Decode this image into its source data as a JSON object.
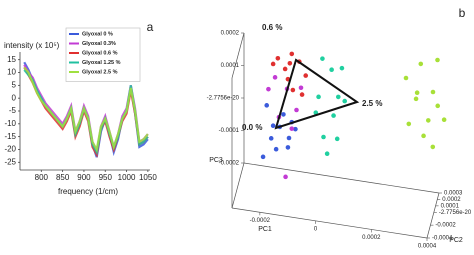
{
  "chart_data": [
    {
      "type": "line",
      "label": "a",
      "ylabel": "intensity (x 10⁵)",
      "xlabel": "frequency (1/cm)",
      "x": [
        760,
        770,
        780,
        790,
        800,
        810,
        820,
        830,
        840,
        850,
        860,
        870,
        880,
        890,
        900,
        910,
        920,
        930,
        940,
        950,
        960,
        970,
        980,
        990,
        1000,
        1010,
        1020,
        1030,
        1040,
        1050
      ],
      "xlim": [
        750,
        1055
      ],
      "xticks": [
        800,
        850,
        900,
        950,
        1000,
        1050
      ],
      "ylim": [
        -28,
        18
      ],
      "yticks": [
        15,
        10,
        5,
        0,
        -5,
        -10,
        -15,
        -20,
        -25
      ],
      "legend": "top-right",
      "series": [
        {
          "name": "Glyoxal 0 %",
          "color": "#3b5bdb",
          "values": [
            14,
            11,
            7,
            3,
            0,
            -3,
            -5,
            -7,
            -9,
            -11,
            -8,
            -4,
            -14,
            -10,
            -4,
            -8,
            -18,
            -23,
            -13,
            -8,
            -14,
            -21,
            -16,
            -8,
            -5,
            4,
            -6,
            -19,
            -18,
            -16
          ]
        },
        {
          "name": "Glyoxal 0.3%",
          "color": "#c23bd4",
          "values": [
            13,
            10,
            8,
            4,
            1,
            -2,
            -4,
            -6,
            -8,
            -10,
            -7,
            -3,
            -13,
            -9,
            -3,
            -7,
            -17,
            -21,
            -11,
            -7,
            -13,
            -19,
            -14,
            -7,
            -4,
            5,
            -4,
            -17,
            -16,
            -14
          ]
        },
        {
          "name": "Glyoxal 0.6 %",
          "color": "#e03030",
          "values": [
            12,
            9,
            6,
            2,
            -1,
            -4,
            -6,
            -8,
            -10,
            -12,
            -9,
            -5,
            -15,
            -11,
            -5,
            -9,
            -19,
            -22,
            -12,
            -9,
            -15,
            -20,
            -15,
            -9,
            -6,
            3,
            -6,
            -18,
            -17,
            -15
          ]
        },
        {
          "name": "Glyoxal 1.25 %",
          "color": "#20c0a0",
          "values": [
            11,
            9,
            7,
            3,
            0,
            -3,
            -5,
            -7,
            -9,
            -11,
            -8,
            -4,
            -14,
            -10,
            -4,
            -8,
            -18,
            -21,
            -12,
            -8,
            -14,
            -19,
            -15,
            -8,
            -5,
            5,
            -5,
            -18,
            -17,
            -15
          ]
        },
        {
          "name": "Glyoxal 2.5 %",
          "color": "#a0e040",
          "values": [
            12,
            10,
            6,
            2,
            -1,
            -3,
            -5,
            -7,
            -9,
            -11,
            -8,
            -4,
            -13,
            -9,
            -4,
            -8,
            -17,
            -20,
            -11,
            -8,
            -13,
            -19,
            -14,
            -8,
            -5,
            4,
            -5,
            -17,
            -16,
            -14
          ]
        }
      ]
    },
    {
      "type": "scatter3d",
      "label": "b",
      "xlabel": "PC1",
      "zlabel": "PC2",
      "ylabel": "PC3",
      "annotations": [
        "0.6 %",
        "2.5 %",
        "0.0 %"
      ],
      "xlim": [
        -0.0003,
        0.0004
      ],
      "xticks": [
        -0.0002,
        0,
        0.0002,
        0.0004
      ],
      "zlim": [
        -0.0004,
        0.0003
      ],
      "zticks": [
        -0.0004,
        -0.0002,
        -2.7756e-20,
        0.0001,
        0.0002,
        0.0003
      ],
      "ylim": [
        -0.0002,
        0.0002
      ],
      "yticks": [
        -0.0002,
        -0.0001,
        -2.7756e-20,
        0.0001,
        0.0002
      ],
      "series": [
        {
          "color": "#3b5bdb",
          "x": [
            -0.0002,
            -0.00018,
            -0.00015,
            -0.00012,
            -0.00019,
            -0.00016,
            -0.0001,
            -0.00014,
            -0.00021,
            -0.00013,
            -0.00011
          ],
          "y": [
            5e-05,
            -2e-05,
            0,
            -4e-05,
            -7e-05,
            -6e-05,
            -2e-05,
            3e-05,
            -0.0001,
            -9e-05,
            1e-05
          ],
          "z": [
            0,
            5e-05,
            -5e-05,
            0,
            0.0001,
            -0.0001,
            5e-05,
            0,
            -5e-05,
            0.0001,
            0
          ]
        },
        {
          "color": "#c23bd4",
          "x": [
            -0.00017,
            -0.00013,
            -9e-05,
            -0.0002,
            -0.00011,
            -0.00015,
            -8e-05,
            -0.00012
          ],
          "y": [
            0.00014,
            0.0001,
            6e-05,
            8e-05,
            -1e-05,
            4e-05,
            0.00011,
            -0.00012
          ],
          "z": [
            0,
            5e-05,
            -5e-05,
            0.0001,
            0,
            -0.0001,
            5e-05,
            -0.0002
          ]
        },
        {
          "color": "#e03030",
          "x": [
            -0.00016,
            -0.00012,
            -8e-05,
            -0.00014,
            -0.0001,
            -6e-05,
            -0.00018,
            -0.00011,
            -7e-05,
            -0.00013
          ],
          "y": [
            0.0002,
            0.00018,
            0.00021,
            0.00015,
            0.00013,
            0.00016,
            0.00017,
            0.00022,
            0.00011,
            0.00012
          ],
          "z": [
            0,
            5e-05,
            -5e-05,
            0.0001,
            -0.0001,
            0,
            5e-05,
            0,
            -5e-05,
            0.0001
          ]
        },
        {
          "color": "#20d0a0",
          "x": [
            0,
            3e-05,
            6e-05,
            -2e-05,
            4e-05,
            1e-05,
            5e-05,
            8e-05,
            2e-05,
            -3e-05,
            7e-05
          ],
          "y": [
            0.00022,
            0.00018,
            0.00012,
            8e-05,
            5e-05,
            0,
            -3e-05,
            0.0001,
            -6e-05,
            3e-05,
            0.0002
          ],
          "z": [
            0,
            5e-05,
            -5e-05,
            0.0001,
            0,
            -0.0001,
            5e-05,
            0,
            -5e-05,
            0.0001,
            0
          ]
        },
        {
          "color": "#a8e038",
          "x": [
            0.0003,
            0.00035,
            0.0004,
            0.00033,
            0.00038,
            0.00042,
            0.00036,
            0.00031,
            0.00044,
            0.00039,
            0.00034,
            0.00041
          ],
          "y": [
            0.0002,
            0.00024,
            0.00018,
            0.00012,
            8e-05,
            0.00015,
            2e-05,
            6e-05,
            0.0001,
            -2e-05,
            0.00016,
            0.00026
          ],
          "z": [
            0,
            5e-05,
            -5e-05,
            0.0001,
            0,
            -0.0001,
            5e-05,
            0,
            -5e-05,
            0.0001,
            0,
            5e-05
          ]
        }
      ]
    }
  ]
}
